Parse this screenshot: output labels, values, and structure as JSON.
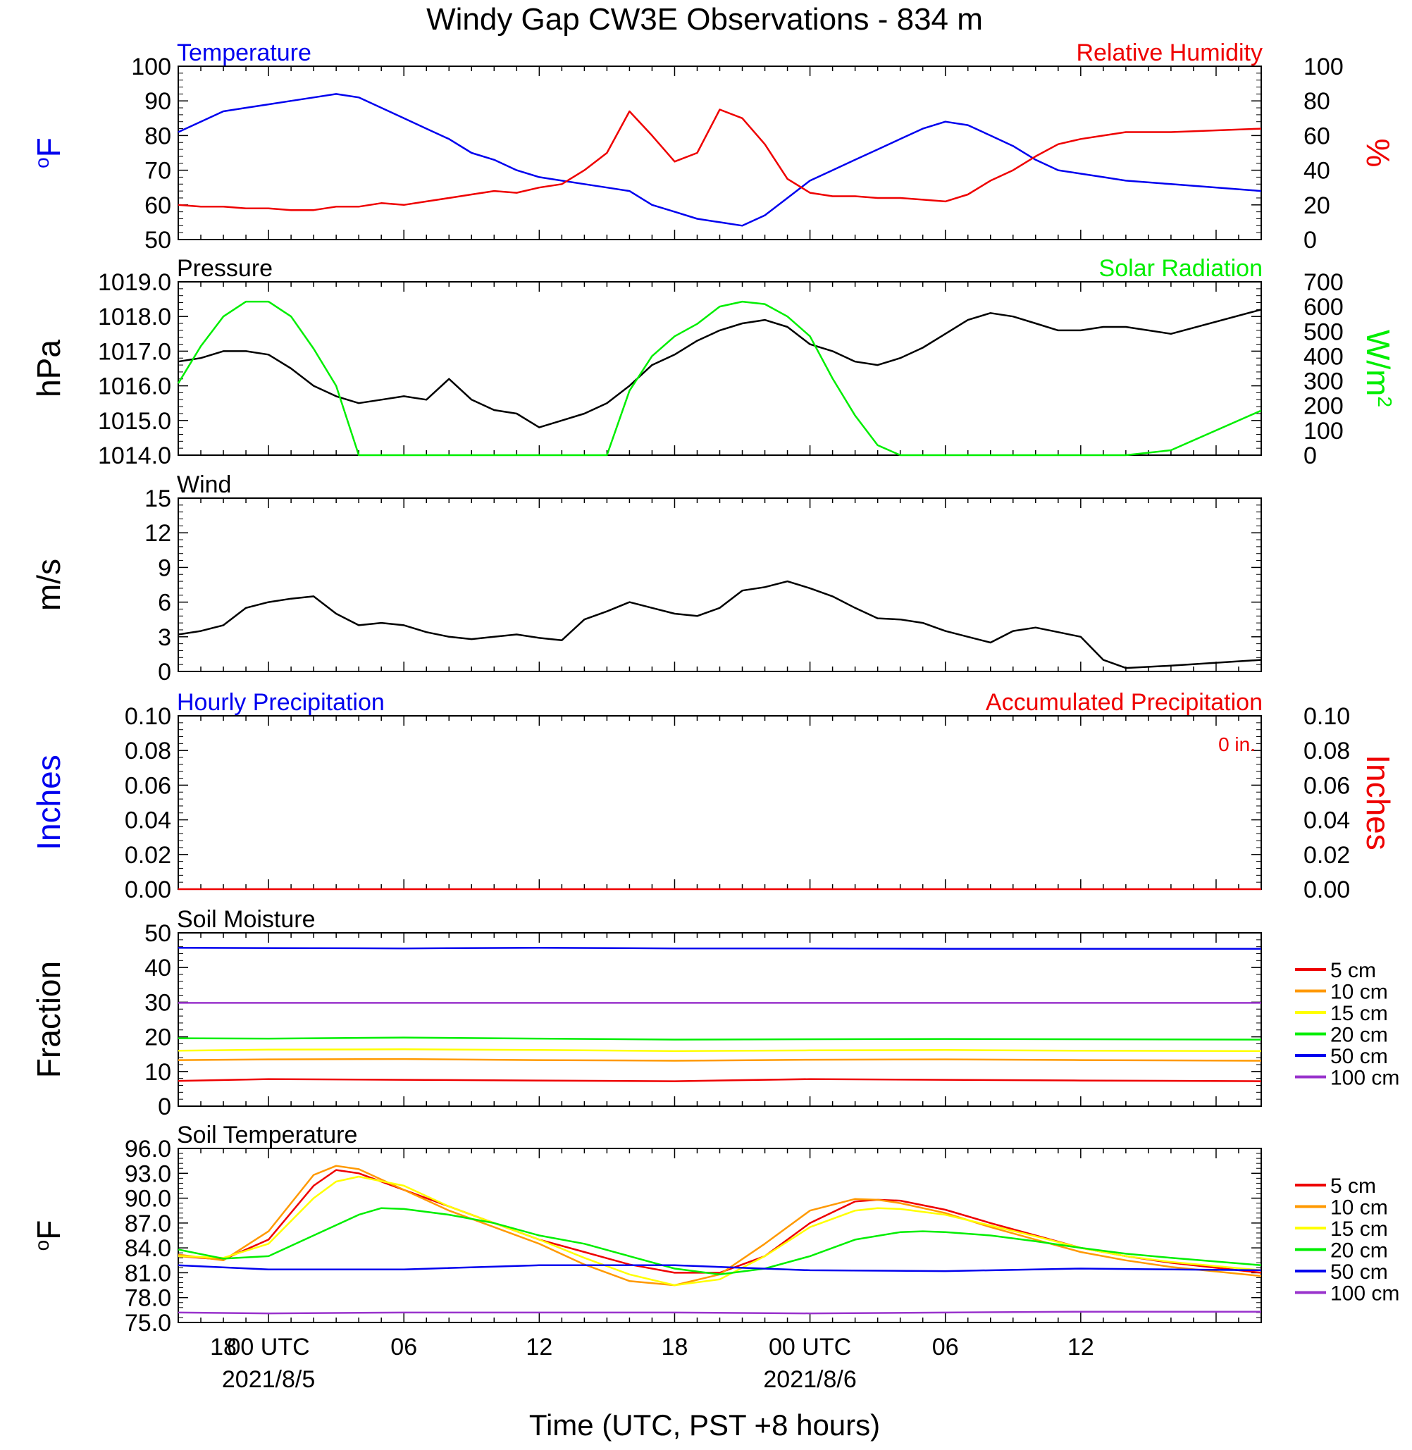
{
  "title": "Windy Gap CW3E Observations - 834 m",
  "colors": {
    "blue": "#0000ee",
    "red": "#ee0000",
    "black": "#000000",
    "green": "#00ee00",
    "orange": "#ff9900",
    "yellow": "#ffff00",
    "purple": "#9933cc",
    "soil_green": "#00ee00",
    "soil_blue": "#0000dd"
  },
  "x_axis": {
    "label": "Time (UTC, PST +8 hours)",
    "range_hours": [
      -4,
      44
    ],
    "ticks": [
      {
        "hour": -2,
        "label": "18",
        "date": ""
      },
      {
        "hour": 0,
        "label": "00 UTC",
        "date": "2021/8/5"
      },
      {
        "hour": 6,
        "label": "06",
        "date": ""
      },
      {
        "hour": 12,
        "label": "12",
        "date": ""
      },
      {
        "hour": 18,
        "label": "18",
        "date": ""
      },
      {
        "hour": 24,
        "label": "00 UTC",
        "date": "2021/8/6"
      },
      {
        "hour": 30,
        "label": "06",
        "date": ""
      },
      {
        "hour": 36,
        "label": "12",
        "date": ""
      }
    ]
  },
  "chart_data": [
    {
      "type": "line",
      "title_left": "Temperature",
      "title_right": "Relative Humidity",
      "ylabel_left": "oF",
      "ylabel_right": "%",
      "ylim_left": [
        50,
        100
      ],
      "ylim_right": [
        0,
        100
      ],
      "yticks_left": [
        "50",
        "60",
        "70",
        "80",
        "90",
        "100"
      ],
      "yticks_right": [
        "0",
        "20",
        "40",
        "60",
        "80",
        "100"
      ],
      "series": [
        {
          "axis": "left",
          "color": "blue",
          "x": [
            -4,
            -3,
            -2,
            -1,
            0,
            1,
            2,
            3,
            4,
            5,
            6,
            7,
            8,
            9,
            10,
            11,
            12,
            13,
            14,
            15,
            16,
            17,
            18,
            19,
            20,
            21,
            22,
            23,
            24,
            25,
            26,
            27,
            28,
            29,
            30,
            31,
            32,
            33,
            34,
            35,
            36,
            37,
            38,
            40,
            44
          ],
          "y": [
            81,
            84,
            87,
            88,
            89,
            90,
            91,
            92,
            91,
            88,
            85,
            82,
            79,
            75,
            73,
            70,
            68,
            67,
            66,
            65,
            64,
            60,
            58,
            56,
            55,
            54,
            57,
            62,
            67,
            70,
            73,
            76,
            79,
            82,
            84,
            83,
            80,
            77,
            73,
            70,
            69,
            68,
            67,
            66,
            64
          ]
        },
        {
          "axis": "right",
          "color": "red",
          "x": [
            -4,
            -3,
            -2,
            -1,
            0,
            1,
            2,
            3,
            4,
            5,
            6,
            7,
            8,
            9,
            10,
            11,
            12,
            13,
            14,
            15,
            16,
            17,
            18,
            19,
            20,
            21,
            22,
            23,
            24,
            25,
            26,
            27,
            28,
            29,
            30,
            31,
            32,
            33,
            34,
            35,
            36,
            37,
            38,
            40,
            44
          ],
          "y": [
            20,
            19,
            19,
            18,
            18,
            17,
            17,
            19,
            19,
            21,
            20,
            22,
            24,
            26,
            28,
            27,
            30,
            32,
            40,
            50,
            74,
            60,
            45,
            50,
            75,
            70,
            55,
            35,
            27,
            25,
            25,
            24,
            24,
            23,
            22,
            26,
            34,
            40,
            48,
            55,
            58,
            60,
            62,
            62,
            64
          ]
        }
      ]
    },
    {
      "type": "line",
      "title_left": "Pressure",
      "title_right": "Solar Radiation",
      "ylabel_left": "hPa",
      "ylabel_right": "W/m2",
      "ylim_left": [
        1014,
        1019
      ],
      "ylim_right": [
        0,
        700
      ],
      "yticks_left": [
        "1014.0",
        "1015.0",
        "1016.0",
        "1017.0",
        "1018.0",
        "1019.0"
      ],
      "yticks_right": [
        "0",
        "100",
        "200",
        "300",
        "400",
        "500",
        "600",
        "700"
      ],
      "series": [
        {
          "axis": "left",
          "color": "black",
          "x": [
            -4,
            -3,
            -2,
            -1,
            0,
            1,
            2,
            3,
            4,
            5,
            6,
            7,
            8,
            9,
            10,
            11,
            12,
            13,
            14,
            15,
            16,
            17,
            18,
            19,
            20,
            21,
            22,
            23,
            24,
            25,
            26,
            27,
            28,
            29,
            30,
            31,
            32,
            33,
            34,
            35,
            36,
            37,
            38,
            40,
            44
          ],
          "y": [
            1016.7,
            1016.8,
            1017.0,
            1017.0,
            1016.9,
            1016.5,
            1016.0,
            1015.7,
            1015.5,
            1015.6,
            1015.7,
            1015.6,
            1016.2,
            1015.6,
            1015.3,
            1015.2,
            1014.8,
            1015.0,
            1015.2,
            1015.5,
            1016.0,
            1016.6,
            1016.9,
            1017.3,
            1017.6,
            1017.8,
            1017.9,
            1017.7,
            1017.2,
            1017.0,
            1016.7,
            1016.6,
            1016.8,
            1017.1,
            1017.5,
            1017.9,
            1018.1,
            1018.0,
            1017.8,
            1017.6,
            1017.6,
            1017.7,
            1017.7,
            1017.5,
            1018.2
          ]
        },
        {
          "axis": "right",
          "color": "green",
          "x": [
            -4,
            -3,
            -2,
            -1,
            0,
            1,
            2,
            3,
            4,
            5,
            6,
            7,
            8,
            9,
            10,
            11,
            12,
            13,
            14,
            15,
            16,
            17,
            18,
            19,
            20,
            21,
            22,
            23,
            24,
            25,
            26,
            27,
            28,
            29,
            30,
            31,
            32,
            33,
            34,
            35,
            36,
            37,
            38,
            40,
            44
          ],
          "y": [
            290,
            440,
            560,
            620,
            620,
            560,
            430,
            280,
            0,
            0,
            0,
            0,
            0,
            0,
            0,
            0,
            0,
            0,
            0,
            0,
            260,
            400,
            480,
            530,
            600,
            620,
            610,
            560,
            480,
            310,
            160,
            40,
            0,
            0,
            0,
            0,
            0,
            0,
            0,
            0,
            0,
            0,
            0,
            20,
            180
          ]
        }
      ]
    },
    {
      "type": "line",
      "title_left": "Wind",
      "ylabel_left": "m/s",
      "ylim_left": [
        0,
        15
      ],
      "yticks_left": [
        "0",
        "3",
        "6",
        "9",
        "12",
        "15"
      ],
      "series": [
        {
          "axis": "left",
          "color": "black",
          "x": [
            -4,
            -3,
            -2,
            -1,
            0,
            1,
            2,
            3,
            4,
            5,
            6,
            7,
            8,
            9,
            10,
            11,
            12,
            13,
            14,
            15,
            16,
            17,
            18,
            19,
            20,
            21,
            22,
            23,
            24,
            25,
            26,
            27,
            28,
            29,
            30,
            31,
            32,
            33,
            34,
            35,
            36,
            37,
            38,
            40,
            44
          ],
          "y": [
            3.2,
            3.5,
            4.0,
            5.5,
            6.0,
            6.3,
            6.5,
            5.0,
            4.0,
            4.2,
            4.0,
            3.4,
            3.0,
            2.8,
            3.0,
            3.2,
            2.9,
            2.7,
            4.5,
            5.2,
            6.0,
            5.5,
            5.0,
            4.8,
            5.5,
            7.0,
            7.3,
            7.8,
            7.2,
            6.5,
            5.5,
            4.6,
            4.5,
            4.2,
            3.5,
            3.0,
            2.5,
            3.5,
            3.8,
            3.4,
            3.0,
            1.0,
            0.3,
            0.5,
            1.0
          ]
        }
      ]
    },
    {
      "type": "line",
      "title_left": "Hourly Precipitation",
      "title_right": "Accumulated Precipitation",
      "annotation": "0 in.",
      "ylabel_left": "Inches",
      "ylabel_right": "Inches",
      "ylim_left": [
        0,
        0.1
      ],
      "ylim_right": [
        0,
        0.1
      ],
      "yticks_left": [
        "0.00",
        "0.02",
        "0.04",
        "0.06",
        "0.08",
        "0.10"
      ],
      "yticks_right": [
        "0.00",
        "0.02",
        "0.04",
        "0.06",
        "0.08",
        "0.10"
      ],
      "series": [
        {
          "axis": "left",
          "color": "red",
          "x": [
            -4,
            44
          ],
          "y": [
            0,
            0
          ]
        }
      ]
    },
    {
      "type": "line",
      "title_left": "Soil Moisture",
      "ylabel_left": "Fraction",
      "ylim_left": [
        0,
        50
      ],
      "yticks_left": [
        "0",
        "10",
        "20",
        "30",
        "40",
        "50"
      ],
      "legend": "right",
      "series": [
        {
          "name": "5 cm",
          "color": "red",
          "x": [
            -4,
            0,
            6,
            12,
            18,
            24,
            30,
            36,
            44
          ],
          "y": [
            7.3,
            7.8,
            7.6,
            7.4,
            7.2,
            7.8,
            7.6,
            7.4,
            7.2
          ]
        },
        {
          "name": "10 cm",
          "color": "orange",
          "x": [
            -4,
            0,
            6,
            12,
            18,
            24,
            30,
            36,
            44
          ],
          "y": [
            13.3,
            13.5,
            13.6,
            13.3,
            13.1,
            13.4,
            13.5,
            13.3,
            13.1
          ]
        },
        {
          "name": "15 cm",
          "color": "yellow",
          "x": [
            -4,
            0,
            6,
            12,
            18,
            24,
            30,
            36,
            44
          ],
          "y": [
            16.0,
            16.3,
            16.4,
            16.2,
            15.9,
            16.1,
            16.2,
            16.0,
            15.9
          ]
        },
        {
          "name": "20 cm",
          "color": "green",
          "x": [
            -4,
            0,
            6,
            12,
            18,
            24,
            30,
            36,
            44
          ],
          "y": [
            19.6,
            19.5,
            19.8,
            19.5,
            19.2,
            19.3,
            19.4,
            19.3,
            19.2
          ]
        },
        {
          "name": "50 cm",
          "color": "blue",
          "x": [
            -4,
            0,
            6,
            12,
            18,
            24,
            30,
            36,
            44
          ],
          "y": [
            45.7,
            45.6,
            45.5,
            45.7,
            45.5,
            45.5,
            45.4,
            45.4,
            45.4
          ]
        },
        {
          "name": "100 cm",
          "color": "purple",
          "x": [
            -4,
            0,
            6,
            12,
            18,
            24,
            30,
            36,
            44
          ],
          "y": [
            29.8,
            29.8,
            29.8,
            29.8,
            29.8,
            29.8,
            29.8,
            29.8,
            29.8
          ]
        }
      ]
    },
    {
      "type": "line",
      "title_left": "Soil Temperature",
      "ylabel_left": "oF",
      "ylim_left": [
        75,
        96
      ],
      "yticks_left": [
        "75.0",
        "78.0",
        "81.0",
        "84.0",
        "87.0",
        "90.0",
        "93.0",
        "96.0"
      ],
      "legend": "right",
      "series": [
        {
          "name": "5 cm",
          "color": "red",
          "x": [
            -4,
            -2,
            0,
            2,
            3,
            4,
            6,
            8,
            10,
            12,
            14,
            16,
            18,
            20,
            22,
            24,
            26,
            27,
            28,
            30,
            32,
            34,
            36,
            38,
            40,
            44
          ],
          "y": [
            83.0,
            82.6,
            85.0,
            91.5,
            93.4,
            93.0,
            91.0,
            89.0,
            87.0,
            85.0,
            83.5,
            82.0,
            81.0,
            81.0,
            83.0,
            87.0,
            89.6,
            89.8,
            89.7,
            88.6,
            87.0,
            85.5,
            84.0,
            83.0,
            82.2,
            81.0
          ]
        },
        {
          "name": "10 cm",
          "color": "orange",
          "x": [
            -4,
            -2,
            0,
            2,
            3,
            4,
            6,
            8,
            10,
            12,
            14,
            16,
            18,
            20,
            22,
            24,
            26,
            27,
            28,
            30,
            32,
            34,
            36,
            38,
            40,
            44
          ],
          "y": [
            83.2,
            82.5,
            86.0,
            92.8,
            93.9,
            93.5,
            91.0,
            88.5,
            86.5,
            84.5,
            82.0,
            80.0,
            79.5,
            80.8,
            84.5,
            88.5,
            89.9,
            89.8,
            89.4,
            88.2,
            86.5,
            85.0,
            83.5,
            82.5,
            81.7,
            80.6
          ]
        },
        {
          "name": "15 cm",
          "color": "yellow",
          "x": [
            -4,
            -2,
            0,
            2,
            3,
            4,
            6,
            8,
            10,
            12,
            14,
            16,
            18,
            20,
            22,
            24,
            26,
            27,
            28,
            30,
            32,
            34,
            36,
            38,
            40,
            44
          ],
          "y": [
            83.0,
            82.8,
            84.5,
            90.0,
            92.0,
            92.6,
            91.5,
            89.0,
            87.0,
            85.0,
            82.8,
            80.8,
            79.5,
            80.2,
            83.0,
            86.5,
            88.5,
            88.8,
            88.7,
            88.0,
            86.7,
            85.4,
            84.0,
            83.0,
            82.3,
            81.3
          ]
        },
        {
          "name": "20 cm",
          "color": "green",
          "x": [
            -4,
            -2,
            0,
            2,
            4,
            5,
            6,
            8,
            10,
            12,
            14,
            16,
            18,
            20,
            22,
            24,
            26,
            28,
            29,
            30,
            32,
            34,
            36,
            38,
            40,
            44
          ],
          "y": [
            83.8,
            82.7,
            83.0,
            85.5,
            88.0,
            88.8,
            88.7,
            88.0,
            87.0,
            85.5,
            84.5,
            83.0,
            81.5,
            80.8,
            81.5,
            83.0,
            85.0,
            85.9,
            86.0,
            85.9,
            85.5,
            84.8,
            84.0,
            83.3,
            82.8,
            81.9
          ]
        },
        {
          "name": "50 cm",
          "color": "blue",
          "x": [
            -4,
            0,
            6,
            12,
            18,
            24,
            30,
            36,
            44
          ],
          "y": [
            81.9,
            81.4,
            81.4,
            81.9,
            81.9,
            81.3,
            81.2,
            81.5,
            81.3
          ]
        },
        {
          "name": "100 cm",
          "color": "purple",
          "x": [
            -4,
            0,
            6,
            12,
            18,
            24,
            30,
            36,
            44
          ],
          "y": [
            76.2,
            76.1,
            76.2,
            76.2,
            76.2,
            76.1,
            76.2,
            76.3,
            76.3
          ]
        }
      ]
    }
  ]
}
